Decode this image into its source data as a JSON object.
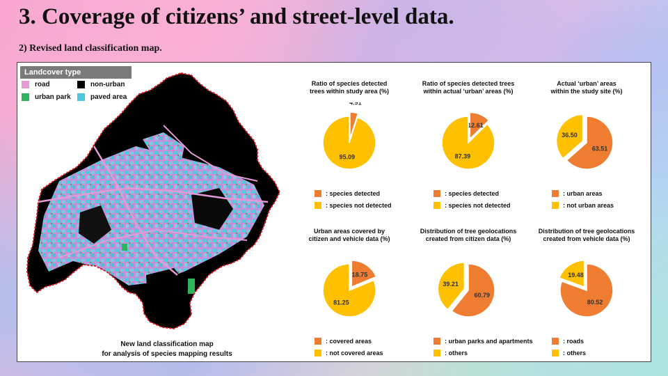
{
  "slide": {
    "title": "3. Coverage of citizens’ and street-level data.",
    "subtitle": "2) Revised land classification map."
  },
  "map": {
    "legend_title": "Landcover type",
    "legend": [
      {
        "label": "road",
        "color": "#e59ad8"
      },
      {
        "label": "non-urban",
        "color": "#000000"
      },
      {
        "label": "urban park",
        "color": "#2fb35a"
      },
      {
        "label": "paved area",
        "color": "#4cc7de"
      }
    ],
    "caption_line1": "New land classification map",
    "caption_line2": "for analysis of species mapping results"
  },
  "colors": {
    "orange": "#ee7d31",
    "yellow": "#ffc000"
  },
  "chart_data": [
    {
      "type": "pie",
      "title_line1": "Ratio of species detected",
      "title_line2": "trees within study area (%)",
      "slices": [
        {
          "label": ": species detected",
          "value": 4.91,
          "color": "#ee7d31",
          "exploded": true
        },
        {
          "label": ": species not detected",
          "value": 95.09,
          "color": "#ffc000"
        }
      ]
    },
    {
      "type": "pie",
      "title_line1": "Ratio of species detected trees",
      "title_line2": "within actual ‘urban’ areas (%)",
      "slices": [
        {
          "label": ": species detected",
          "value": 12.61,
          "color": "#ee7d31",
          "exploded": true
        },
        {
          "label": ": species not detected",
          "value": 87.39,
          "color": "#ffc000"
        }
      ]
    },
    {
      "type": "pie",
      "title_line1": "Actual ‘urban’ areas",
      "title_line2": "within the study site (%)",
      "slices": [
        {
          "label": ": urban areas",
          "value": 63.51,
          "color": "#ee7d31"
        },
        {
          "label": ": not urban areas",
          "value": 36.5,
          "color": "#ffc000",
          "exploded": true
        }
      ]
    },
    {
      "type": "pie",
      "title_line1": "Urban areas covered by",
      "title_line2": "citizen and vehicle data (%)",
      "slices": [
        {
          "label": ": covered areas",
          "value": 18.75,
          "color": "#ee7d31",
          "exploded": true
        },
        {
          "label": ": not covered areas",
          "value": 81.25,
          "color": "#ffc000"
        }
      ]
    },
    {
      "type": "pie",
      "title_line1": "Distribution of tree geolocations",
      "title_line2": "created from citizen data (%)",
      "slices": [
        {
          "label": ": urban parks and apartments",
          "value": 60.79,
          "color": "#ee7d31"
        },
        {
          "label": ": others",
          "value": 39.21,
          "color": "#ffc000",
          "exploded": true
        }
      ]
    },
    {
      "type": "pie",
      "title_line1": "Distribution of tree geolocations",
      "title_line2": "created from vehicle data (%)",
      "slices": [
        {
          "label": ": roads",
          "value": 80.52,
          "color": "#ee7d31"
        },
        {
          "label": ": others",
          "value": 19.48,
          "color": "#ffc000",
          "exploded": true
        }
      ]
    }
  ]
}
